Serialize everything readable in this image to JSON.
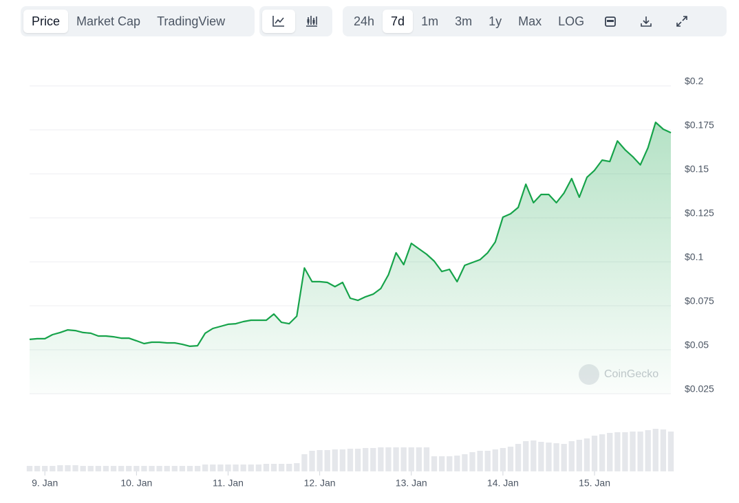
{
  "toolbar": {
    "views": [
      "Price",
      "Market Cap",
      "TradingView"
    ],
    "selected_view": 0,
    "ranges": [
      "24h",
      "7d",
      "1m",
      "3m",
      "1y",
      "Max",
      "LOG"
    ],
    "selected_range": 1
  },
  "watermark": "CoinGecko",
  "chart_data": {
    "type": "line",
    "color": "#16a34a",
    "grid": true,
    "categories": [
      null,
      null,
      "9. Jan",
      null,
      null,
      null,
      null,
      null,
      null,
      null,
      null,
      null,
      null,
      null,
      "10. Jan",
      null,
      null,
      null,
      null,
      null,
      null,
      null,
      null,
      null,
      null,
      null,
      "11. Jan",
      null,
      null,
      null,
      null,
      null,
      null,
      null,
      null,
      null,
      null,
      null,
      "12. Jan",
      null,
      null,
      null,
      null,
      null,
      null,
      null,
      null,
      null,
      null,
      null,
      "13. Jan",
      null,
      null,
      null,
      null,
      null,
      null,
      null,
      null,
      null,
      null,
      null,
      "14. Jan",
      null,
      null,
      null,
      null,
      null,
      null,
      null,
      null,
      null,
      null,
      null,
      "15. Jan",
      null,
      null,
      null,
      null,
      null,
      null,
      null,
      null,
      null,
      null
    ],
    "values": [
      0.0559,
      0.0563,
      0.0563,
      0.0586,
      0.0598,
      0.0613,
      0.0609,
      0.0598,
      0.0594,
      0.0578,
      0.0578,
      0.0574,
      0.0566,
      0.0566,
      0.0551,
      0.0535,
      0.0543,
      0.0543,
      0.0539,
      0.0539,
      0.0531,
      0.052,
      0.0523,
      0.0594,
      0.0621,
      0.0633,
      0.0645,
      0.0648,
      0.066,
      0.0668,
      0.0668,
      0.0668,
      0.0703,
      0.0656,
      0.0648,
      0.0691,
      0.0965,
      0.0887,
      0.0887,
      0.0883,
      0.0859,
      0.0883,
      0.0793,
      0.0781,
      0.0801,
      0.0816,
      0.0848,
      0.0926,
      0.1051,
      0.0984,
      0.1105,
      0.1074,
      0.1043,
      0.1004,
      0.0945,
      0.0957,
      0.0887,
      0.098,
      0.0996,
      0.1012,
      0.1051,
      0.1113,
      0.1254,
      0.1273,
      0.1309,
      0.1441,
      0.1336,
      0.1383,
      0.1383,
      0.1336,
      0.1391,
      0.1473,
      0.1367,
      0.148,
      0.152,
      0.1578,
      0.157,
      0.1687,
      0.1637,
      0.1598,
      0.1551,
      0.1648,
      0.1793,
      0.1754,
      0.1734
    ],
    "volume": [
      8,
      8,
      8,
      8,
      9,
      9,
      9,
      8,
      8,
      8,
      8,
      8,
      8,
      8,
      8,
      8,
      8,
      8,
      8,
      8,
      8,
      8,
      8,
      10,
      10,
      10,
      10,
      10,
      10,
      10,
      10,
      11,
      11,
      11,
      11,
      12,
      25,
      30,
      31,
      31,
      32,
      32,
      33,
      33,
      34,
      34,
      35,
      35,
      35,
      35,
      35,
      35,
      35,
      22,
      22,
      22,
      23,
      25,
      28,
      30,
      30,
      32,
      34,
      36,
      40,
      44,
      45,
      43,
      42,
      41,
      40,
      44,
      46,
      48,
      52,
      54,
      56,
      57,
      57,
      58,
      58,
      60,
      62,
      61,
      58
    ],
    "ylim": [
      0.025,
      0.2
    ],
    "yticks": [
      {
        "value": 0.025,
        "label": "$0.025"
      },
      {
        "value": 0.05,
        "label": "$0.05"
      },
      {
        "value": 0.075,
        "label": "$0.075"
      },
      {
        "value": 0.1,
        "label": "$0.1"
      },
      {
        "value": 0.125,
        "label": "$0.125"
      },
      {
        "value": 0.15,
        "label": "$0.15"
      },
      {
        "value": 0.175,
        "label": "$0.175"
      },
      {
        "value": 0.2,
        "label": "$0.2"
      }
    ]
  }
}
